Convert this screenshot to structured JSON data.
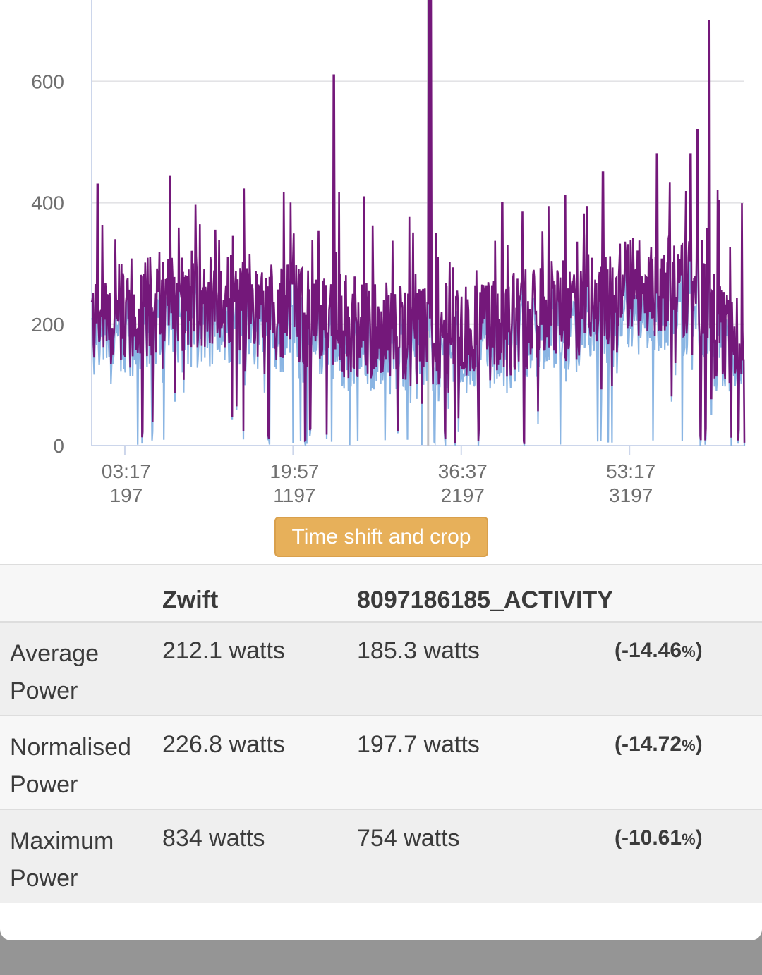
{
  "chart_data": {
    "type": "line",
    "y_ticks": [
      "0",
      "200",
      "400",
      "600"
    ],
    "x_ticks": [
      {
        "time": "03:17",
        "seconds": "197"
      },
      {
        "time": "19:57",
        "seconds": "1197"
      },
      {
        "time": "36:37",
        "seconds": "2197"
      },
      {
        "time": "53:17",
        "seconds": "3197"
      }
    ],
    "ylim": [
      0,
      734
    ],
    "xlim": [
      0,
      3880
    ],
    "grid": true,
    "series": [
      {
        "color": "#8ab5e3"
      },
      {
        "color": "#74187a"
      }
    ],
    "vertical_marker_x": 2000
  },
  "crop_button": {
    "label": "Time shift and crop"
  },
  "table": {
    "headers": [
      "",
      "Zwift",
      "8097186185_ACTIVITY",
      ""
    ],
    "rows": [
      {
        "label": "Average Power",
        "a": "212.1 watts",
        "b": "185.3 watts",
        "diff": "(-14.46",
        "pct": "%",
        "close": ")"
      },
      {
        "label": "Normalised Power",
        "a": "226.8 watts",
        "b": "197.7 watts",
        "diff": "(-14.72",
        "pct": "%",
        "close": ")"
      },
      {
        "label": "Maximum Power",
        "a": "834 watts",
        "b": "754 watts",
        "diff": "(-10.61",
        "pct": "%",
        "close": ")"
      }
    ]
  },
  "colors": {
    "background_overlay": "#959595",
    "button": "#e7b05a",
    "series_a": "#8ab5e3",
    "series_b": "#74187a"
  }
}
